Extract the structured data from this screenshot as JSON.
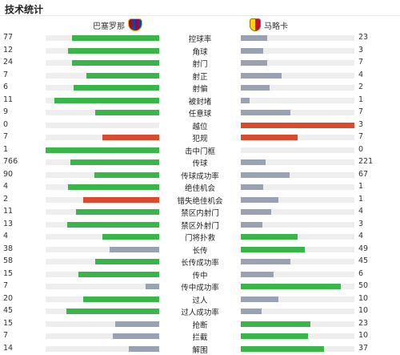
{
  "title": "技术统计",
  "home_team": {
    "name": "巴塞罗那",
    "logo_icon": "fc-barcelona-crest-icon"
  },
  "away_team": {
    "name": "马略卡",
    "logo_icon": "rcd-mallorca-crest-icon"
  },
  "colors": {
    "higher": "#3ab54a",
    "lower": "#98a2b3",
    "negative": "#d94a2e",
    "track": "#eeeeee"
  },
  "stats": [
    {
      "label": "控球率",
      "home": "77",
      "away": "23",
      "home_pct": 0.77,
      "away_pct": 0.23,
      "home_color": "green",
      "away_color": "gray"
    },
    {
      "label": "角球",
      "home": "12",
      "away": "3",
      "home_pct": 0.8,
      "away_pct": 0.2,
      "home_color": "green",
      "away_color": "gray"
    },
    {
      "label": "射门",
      "home": "24",
      "away": "7",
      "home_pct": 0.77,
      "away_pct": 0.23,
      "home_color": "green",
      "away_color": "gray"
    },
    {
      "label": "射正",
      "home": "7",
      "away": "4",
      "home_pct": 0.64,
      "away_pct": 0.36,
      "home_color": "green",
      "away_color": "gray"
    },
    {
      "label": "射偏",
      "home": "6",
      "away": "2",
      "home_pct": 0.75,
      "away_pct": 0.25,
      "home_color": "green",
      "away_color": "gray"
    },
    {
      "label": "被封堵",
      "home": "11",
      "away": "1",
      "home_pct": 0.92,
      "away_pct": 0.08,
      "home_color": "green",
      "away_color": "gray"
    },
    {
      "label": "任意球",
      "home": "9",
      "away": "7",
      "home_pct": 0.56,
      "away_pct": 0.44,
      "home_color": "green",
      "away_color": "gray"
    },
    {
      "label": "越位",
      "home": "0",
      "away": "3",
      "home_pct": 0.0,
      "away_pct": 1.0,
      "home_color": "red",
      "away_color": "red"
    },
    {
      "label": "犯规",
      "home": "7",
      "away": "7",
      "home_pct": 0.5,
      "away_pct": 0.5,
      "home_color": "red",
      "away_color": "red"
    },
    {
      "label": "击中门框",
      "home": "1",
      "away": "0",
      "home_pct": 1.0,
      "away_pct": 0.0,
      "home_color": "green",
      "away_color": "gray"
    },
    {
      "label": "传球",
      "home": "766",
      "away": "221",
      "home_pct": 0.78,
      "away_pct": 0.22,
      "home_color": "green",
      "away_color": "gray"
    },
    {
      "label": "传球成功率",
      "home": "90",
      "away": "67",
      "home_pct": 0.57,
      "away_pct": 0.43,
      "home_color": "green",
      "away_color": "gray"
    },
    {
      "label": "绝佳机会",
      "home": "4",
      "away": "1",
      "home_pct": 0.8,
      "away_pct": 0.2,
      "home_color": "green",
      "away_color": "gray"
    },
    {
      "label": "错失绝佳机会",
      "home": "2",
      "away": "1",
      "home_pct": 0.67,
      "away_pct": 0.33,
      "home_color": "red",
      "away_color": "gray"
    },
    {
      "label": "禁区内射门",
      "home": "11",
      "away": "4",
      "home_pct": 0.73,
      "away_pct": 0.27,
      "home_color": "green",
      "away_color": "gray"
    },
    {
      "label": "禁区外射门",
      "home": "13",
      "away": "3",
      "home_pct": 0.81,
      "away_pct": 0.19,
      "home_color": "green",
      "away_color": "gray"
    },
    {
      "label": "门将扑救",
      "home": "4",
      "away": "4",
      "home_pct": 0.5,
      "away_pct": 0.5,
      "home_color": "green",
      "away_color": "green"
    },
    {
      "label": "长传",
      "home": "38",
      "away": "49",
      "home_pct": 0.44,
      "away_pct": 0.56,
      "home_color": "gray",
      "away_color": "green"
    },
    {
      "label": "长传成功率",
      "home": "58",
      "away": "45",
      "home_pct": 0.56,
      "away_pct": 0.44,
      "home_color": "green",
      "away_color": "gray"
    },
    {
      "label": "传中",
      "home": "15",
      "away": "6",
      "home_pct": 0.71,
      "away_pct": 0.29,
      "home_color": "green",
      "away_color": "gray"
    },
    {
      "label": "传中成功率",
      "home": "7",
      "away": "50",
      "home_pct": 0.12,
      "away_pct": 0.88,
      "home_color": "gray",
      "away_color": "green"
    },
    {
      "label": "过人",
      "home": "20",
      "away": "10",
      "home_pct": 0.67,
      "away_pct": 0.33,
      "home_color": "green",
      "away_color": "gray"
    },
    {
      "label": "过人成功率",
      "home": "45",
      "away": "10",
      "home_pct": 0.82,
      "away_pct": 0.18,
      "home_color": "green",
      "away_color": "gray"
    },
    {
      "label": "抢断",
      "home": "15",
      "away": "23",
      "home_pct": 0.39,
      "away_pct": 0.61,
      "home_color": "gray",
      "away_color": "green"
    },
    {
      "label": "拦截",
      "home": "7",
      "away": "10",
      "home_pct": 0.41,
      "away_pct": 0.59,
      "home_color": "gray",
      "away_color": "green"
    },
    {
      "label": "解围",
      "home": "14",
      "away": "37",
      "home_pct": 0.27,
      "away_pct": 0.73,
      "home_color": "gray",
      "away_color": "green"
    }
  ]
}
